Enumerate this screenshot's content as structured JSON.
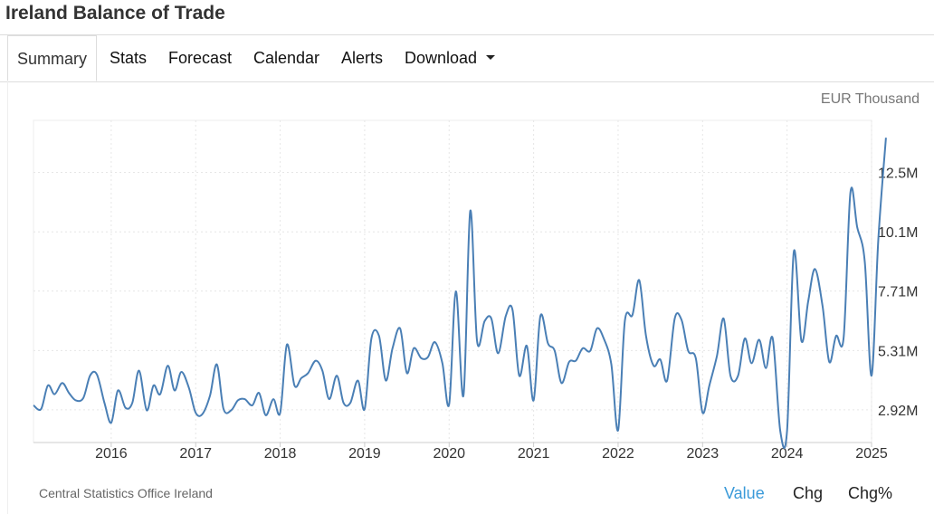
{
  "page": {
    "title": "Ireland Balance of Trade"
  },
  "tabs": [
    {
      "label": "Summary",
      "active": true
    },
    {
      "label": "Stats"
    },
    {
      "label": "Forecast"
    },
    {
      "label": "Calendar"
    },
    {
      "label": "Alerts"
    },
    {
      "label": "Download",
      "dropdown": true
    }
  ],
  "unit_label": "EUR Thousand",
  "source": "Central Statistics Office Ireland",
  "buttons": {
    "value": "Value",
    "chg": "Chg",
    "chg_pct": "Chg%"
  },
  "colors": {
    "line": "#4a7fb5",
    "active_button": "#3a9ad9",
    "grid": "#e6e6e6",
    "axis_text": "#333333"
  },
  "chart_data": {
    "type": "line",
    "title": "",
    "xlabel": "",
    "ylabel": "",
    "x_tick_labels": [
      "2016",
      "2017",
      "2018",
      "2019",
      "2020",
      "2021",
      "2022",
      "2023",
      "2024",
      "2025"
    ],
    "y_tick_labels": [
      "2.92M",
      "5.31M",
      "7.71M",
      "10.1M",
      "12.5M"
    ],
    "y_ticks": [
      2.92,
      5.31,
      7.71,
      10.1,
      12.5
    ],
    "ylim": [
      1.6,
      14.6
    ],
    "xlim": [
      2015.08,
      2025.0
    ],
    "grid": true,
    "y_axis_side": "right",
    "series": [
      {
        "values": [
          [
            2015.08,
            3.1
          ],
          [
            2015.17,
            2.95
          ],
          [
            2015.25,
            3.9
          ],
          [
            2015.33,
            3.55
          ],
          [
            2015.42,
            4.0
          ],
          [
            2015.5,
            3.6
          ],
          [
            2015.58,
            3.3
          ],
          [
            2015.67,
            3.4
          ],
          [
            2015.75,
            4.3
          ],
          [
            2015.83,
            4.35
          ],
          [
            2015.92,
            3.2
          ],
          [
            2016.0,
            2.4
          ],
          [
            2016.08,
            3.7
          ],
          [
            2016.17,
            3.0
          ],
          [
            2016.25,
            3.2
          ],
          [
            2016.33,
            4.5
          ],
          [
            2016.42,
            2.9
          ],
          [
            2016.5,
            3.9
          ],
          [
            2016.58,
            3.55
          ],
          [
            2016.67,
            4.7
          ],
          [
            2016.75,
            3.7
          ],
          [
            2016.83,
            4.45
          ],
          [
            2016.92,
            3.8
          ],
          [
            2017.0,
            2.8
          ],
          [
            2017.08,
            2.75
          ],
          [
            2017.17,
            3.5
          ],
          [
            2017.25,
            4.75
          ],
          [
            2017.33,
            2.95
          ],
          [
            2017.42,
            2.9
          ],
          [
            2017.5,
            3.3
          ],
          [
            2017.58,
            3.35
          ],
          [
            2017.67,
            3.1
          ],
          [
            2017.75,
            3.6
          ],
          [
            2017.83,
            2.7
          ],
          [
            2017.92,
            3.35
          ],
          [
            2018.0,
            2.8
          ],
          [
            2018.08,
            5.55
          ],
          [
            2018.17,
            3.9
          ],
          [
            2018.25,
            4.2
          ],
          [
            2018.33,
            4.4
          ],
          [
            2018.42,
            4.9
          ],
          [
            2018.5,
            4.5
          ],
          [
            2018.58,
            3.35
          ],
          [
            2018.67,
            4.3
          ],
          [
            2018.75,
            3.2
          ],
          [
            2018.83,
            3.2
          ],
          [
            2018.92,
            4.1
          ],
          [
            2019.0,
            2.95
          ],
          [
            2019.08,
            5.8
          ],
          [
            2019.17,
            5.9
          ],
          [
            2019.25,
            4.1
          ],
          [
            2019.33,
            5.4
          ],
          [
            2019.42,
            6.2
          ],
          [
            2019.5,
            4.4
          ],
          [
            2019.58,
            5.4
          ],
          [
            2019.67,
            5.0
          ],
          [
            2019.75,
            5.05
          ],
          [
            2019.83,
            5.65
          ],
          [
            2019.92,
            4.8
          ],
          [
            2020.0,
            3.15
          ],
          [
            2020.08,
            7.7
          ],
          [
            2020.17,
            3.5
          ],
          [
            2020.25,
            10.95
          ],
          [
            2020.33,
            5.7
          ],
          [
            2020.42,
            6.5
          ],
          [
            2020.5,
            6.6
          ],
          [
            2020.58,
            5.2
          ],
          [
            2020.67,
            6.7
          ],
          [
            2020.75,
            6.95
          ],
          [
            2020.83,
            4.3
          ],
          [
            2020.92,
            5.5
          ],
          [
            2021.0,
            3.3
          ],
          [
            2021.08,
            6.7
          ],
          [
            2021.17,
            5.6
          ],
          [
            2021.25,
            5.3
          ],
          [
            2021.33,
            4.0
          ],
          [
            2021.42,
            4.85
          ],
          [
            2021.5,
            4.9
          ],
          [
            2021.58,
            5.4
          ],
          [
            2021.67,
            5.3
          ],
          [
            2021.75,
            6.2
          ],
          [
            2021.83,
            5.8
          ],
          [
            2021.92,
            4.75
          ],
          [
            2022.0,
            2.1
          ],
          [
            2022.08,
            6.5
          ],
          [
            2022.17,
            6.75
          ],
          [
            2022.25,
            8.15
          ],
          [
            2022.33,
            5.9
          ],
          [
            2022.42,
            4.7
          ],
          [
            2022.5,
            4.95
          ],
          [
            2022.58,
            4.1
          ],
          [
            2022.67,
            6.6
          ],
          [
            2022.75,
            6.55
          ],
          [
            2022.83,
            5.3
          ],
          [
            2022.92,
            5.0
          ],
          [
            2023.0,
            2.8
          ],
          [
            2023.08,
            3.9
          ],
          [
            2023.17,
            5.1
          ],
          [
            2023.25,
            6.6
          ],
          [
            2023.33,
            4.3
          ],
          [
            2023.42,
            4.3
          ],
          [
            2023.5,
            5.8
          ],
          [
            2023.58,
            4.8
          ],
          [
            2023.67,
            5.75
          ],
          [
            2023.75,
            4.6
          ],
          [
            2023.83,
            5.8
          ],
          [
            2023.92,
            2.05
          ],
          [
            2024.0,
            2.1
          ],
          [
            2024.08,
            9.3
          ],
          [
            2024.17,
            5.7
          ],
          [
            2024.25,
            7.3
          ],
          [
            2024.33,
            8.6
          ],
          [
            2024.42,
            7.1
          ],
          [
            2024.5,
            4.85
          ],
          [
            2024.58,
            5.9
          ],
          [
            2024.67,
            5.85
          ],
          [
            2024.75,
            11.7
          ],
          [
            2024.83,
            10.3
          ],
          [
            2024.92,
            8.9
          ],
          [
            2025.0,
            4.3
          ],
          [
            2025.08,
            9.8
          ],
          [
            2025.17,
            13.9
          ]
        ]
      }
    ]
  }
}
